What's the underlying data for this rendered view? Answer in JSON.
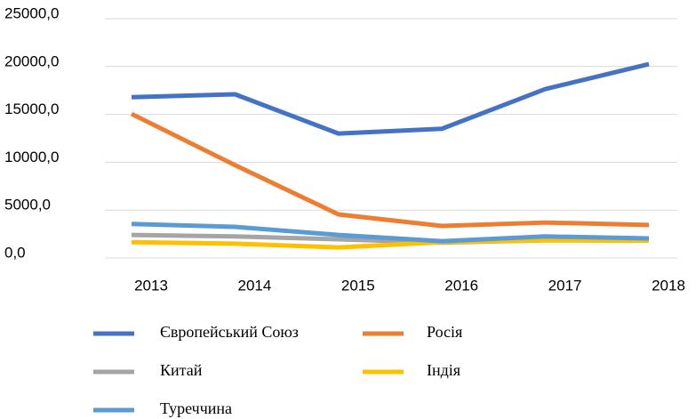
{
  "chart_data": {
    "type": "line",
    "categories": [
      "2013",
      "2014",
      "2015",
      "2016",
      "2017",
      "2018"
    ],
    "series": [
      {
        "name": "Європейський Союз",
        "color": "#4472c4",
        "values": [
          16800,
          17100,
          13000,
          13500,
          17650,
          20250
        ]
      },
      {
        "name": "Росія",
        "color": "#ed7d31",
        "values": [
          15050,
          9700,
          4550,
          3350,
          3700,
          3450
        ]
      },
      {
        "name": "Китай",
        "color": "#a5a5a5",
        "values": [
          2400,
          2250,
          1950,
          1600,
          1850,
          1850
        ]
      },
      {
        "name": "Індія",
        "color": "#ffc000",
        "values": [
          1650,
          1500,
          1100,
          1650,
          1850,
          1800
        ]
      },
      {
        "name": "Туреччина",
        "color": "#5b9bd5",
        "values": [
          3550,
          3250,
          2400,
          1750,
          2250,
          2050
        ]
      }
    ],
    "ylim": [
      0,
      25000
    ],
    "yticks": [
      {
        "value": 0,
        "label": "0,0"
      },
      {
        "value": 5000,
        "label": "5000,0"
      },
      {
        "value": 10000,
        "label": "10000,0"
      },
      {
        "value": 15000,
        "label": "15000,0"
      },
      {
        "value": 20000,
        "label": "20000,0"
      },
      {
        "value": 25000,
        "label": "25000,0"
      }
    ],
    "grid": true,
    "legend": "bottom"
  }
}
